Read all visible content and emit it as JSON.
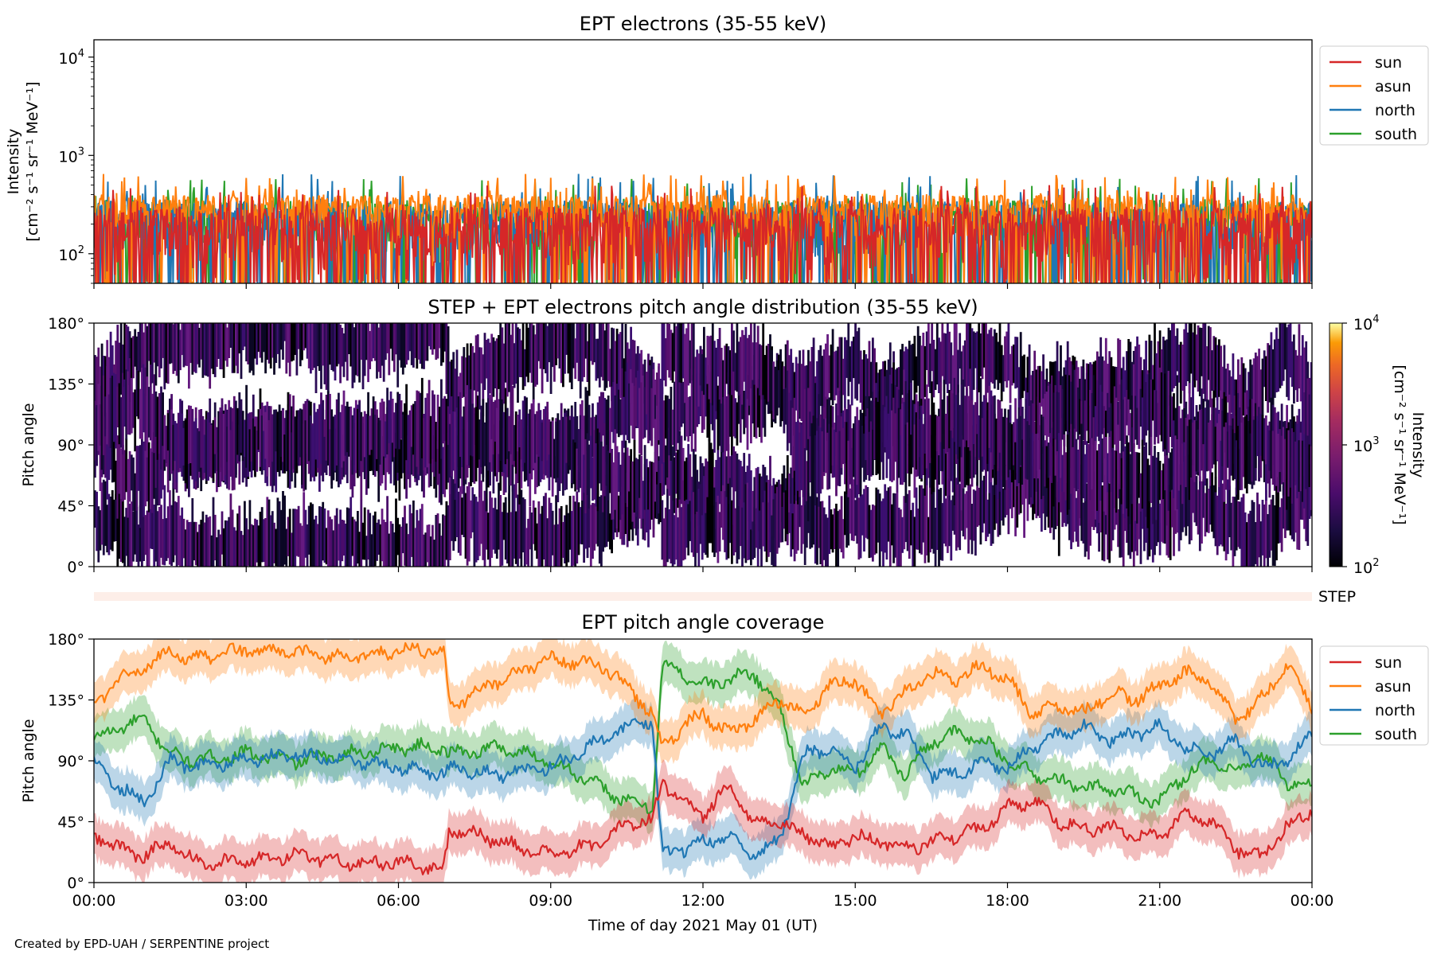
{
  "credit": "Created by EPD-UAH / SERPENTINE project",
  "colors": {
    "sun": "#d62728",
    "asun": "#ff7f0e",
    "north": "#1f77b4",
    "south": "#2ca02c",
    "step_band": "#fdeee8"
  },
  "chart_data": [
    {
      "type": "line",
      "title": "EPT electrons (35-55 keV)",
      "ylabel_line1": "Intensity",
      "ylabel_line2": "[cm⁻² s⁻¹ sr⁻¹ MeV⁻¹]",
      "yscale": "log",
      "ylim": [
        50,
        15000
      ],
      "yticks": [
        {
          "value": 100,
          "base": "10",
          "exp": "2"
        },
        {
          "value": 1000,
          "base": "10",
          "exp": "3"
        },
        {
          "value": 10000,
          "base": "10",
          "exp": "4"
        }
      ],
      "xlim_hours": [
        0,
        24
      ],
      "x_tick_labels_shown": false,
      "legend_position": "outside upper right",
      "series": [
        {
          "name": "sun",
          "color": "#d62728",
          "typical_range": [
            50,
            300
          ],
          "peak": 500
        },
        {
          "name": "asun",
          "color": "#ff7f0e",
          "typical_range": [
            150,
            400
          ],
          "peak": 650
        },
        {
          "name": "north",
          "color": "#1f77b4",
          "typical_range": [
            80,
            350
          ],
          "peak": 650
        },
        {
          "name": "south",
          "color": "#2ca02c",
          "typical_range": [
            80,
            350
          ],
          "peak": 600
        }
      ]
    },
    {
      "type": "heatmap",
      "title": "STEP + EPT electrons pitch angle distribution (35-55 keV)",
      "ylabel": "Pitch angle",
      "ylim": [
        0,
        180
      ],
      "yticks": [
        "0°",
        "45°",
        "90°",
        "135°",
        "180°"
      ],
      "xlim_hours": [
        0,
        24
      ],
      "x_tick_labels_shown": false,
      "colorbar": {
        "scale": "log",
        "range": [
          100,
          10000
        ],
        "ticks": [
          {
            "value": 100,
            "base": "10",
            "exp": "2"
          },
          {
            "value": 1000,
            "base": "10",
            "exp": "3"
          },
          {
            "value": 10000,
            "base": "10",
            "exp": "4"
          }
        ],
        "label_line1": "Intensity",
        "label_line2": "[cm⁻² s⁻¹ sr⁻¹ MeV⁻¹]",
        "colormap": "inferno"
      },
      "step_band_label": "STEP"
    },
    {
      "type": "line",
      "title": "EPT pitch angle coverage",
      "ylabel": "Pitch angle",
      "xlabel": "Time of day 2021 May 01 (UT)",
      "ylim": [
        0,
        180
      ],
      "yticks": [
        "0°",
        "45°",
        "90°",
        "135°",
        "180°"
      ],
      "xticks": [
        "00:00",
        "03:00",
        "06:00",
        "09:00",
        "12:00",
        "15:00",
        "18:00",
        "21:00",
        "00:00"
      ],
      "xlim_hours": [
        0,
        24
      ],
      "legend_position": "outside upper right",
      "band_halfwidth_deg": 15,
      "series": [
        {
          "name": "sun",
          "color": "#d62728",
          "x": [
            0,
            0.5,
            1,
            1.5,
            2,
            3,
            4,
            5,
            6,
            6.9,
            7,
            8,
            9,
            10,
            10.5,
            11,
            11.2,
            11.6,
            12,
            12.5,
            13,
            13.5,
            14,
            14.5,
            15,
            15.5,
            16,
            16.5,
            17,
            17.5,
            18,
            18.5,
            19,
            19.5,
            20,
            20.5,
            21,
            21.5,
            22,
            22.5,
            23,
            23.5,
            24
          ],
          "y": [
            35,
            25,
            20,
            30,
            15,
            15,
            20,
            15,
            15,
            10,
            40,
            30,
            20,
            30,
            45,
            45,
            75,
            60,
            50,
            70,
            45,
            45,
            35,
            25,
            35,
            30,
            25,
            30,
            35,
            40,
            55,
            60,
            45,
            40,
            40,
            35,
            35,
            50,
            45,
            25,
            20,
            40,
            55
          ]
        },
        {
          "name": "asun",
          "color": "#ff7f0e",
          "x": [
            0,
            0.5,
            1,
            1.5,
            2,
            3,
            4,
            5,
            6,
            6.9,
            7,
            8,
            9,
            10,
            10.5,
            11,
            11.2,
            11.6,
            12,
            12.5,
            13,
            13.5,
            14,
            14.5,
            15,
            15.5,
            16,
            16.5,
            17,
            17.5,
            18,
            18.5,
            19,
            19.5,
            20,
            20.5,
            21,
            21.5,
            22,
            22.5,
            23,
            23.5,
            24
          ],
          "y": [
            130,
            150,
            160,
            170,
            165,
            172,
            170,
            165,
            172,
            172,
            130,
            150,
            165,
            160,
            145,
            125,
            100,
            115,
            125,
            110,
            120,
            135,
            125,
            145,
            150,
            125,
            140,
            155,
            150,
            160,
            150,
            125,
            130,
            125,
            140,
            135,
            145,
            155,
            150,
            120,
            135,
            160,
            130
          ]
        },
        {
          "name": "north",
          "color": "#1f77b4",
          "x": [
            0,
            0.5,
            1,
            1.5,
            2,
            3,
            4,
            5,
            6,
            6.9,
            7,
            8,
            9,
            10,
            10.5,
            11,
            11.2,
            11.6,
            12,
            12.5,
            13,
            13.5,
            14,
            14.5,
            15,
            15.5,
            16,
            16.5,
            17,
            17.5,
            18,
            18.5,
            19,
            19.5,
            20,
            20.5,
            21,
            21.5,
            22,
            22.5,
            23,
            23.5,
            24
          ],
          "y": [
            90,
            70,
            60,
            90,
            85,
            90,
            95,
            90,
            85,
            80,
            85,
            80,
            85,
            105,
            115,
            120,
            20,
            25,
            30,
            35,
            20,
            30,
            95,
            100,
            85,
            115,
            110,
            80,
            80,
            90,
            85,
            100,
            110,
            115,
            105,
            110,
            115,
            100,
            95,
            105,
            85,
            90,
            110
          ]
        },
        {
          "name": "south",
          "color": "#2ca02c",
          "x": [
            0,
            0.5,
            1,
            1.5,
            2,
            3,
            4,
            5,
            6,
            6.9,
            7,
            8,
            9,
            10,
            10.5,
            11,
            11.2,
            11.6,
            12,
            12.5,
            13,
            13.5,
            14,
            14.5,
            15,
            15.5,
            16,
            16.5,
            17,
            17.5,
            18,
            18.5,
            19,
            19.5,
            20,
            20.5,
            21,
            21.5,
            22,
            22.5,
            23,
            23.5,
            24
          ],
          "y": [
            105,
            115,
            120,
            95,
            90,
            95,
            90,
            95,
            100,
            100,
            95,
            100,
            90,
            70,
            60,
            55,
            160,
            155,
            145,
            150,
            155,
            130,
            70,
            85,
            80,
            100,
            80,
            105,
            110,
            105,
            90,
            80,
            75,
            70,
            70,
            65,
            60,
            80,
            90,
            80,
            95,
            75,
            70
          ]
        }
      ]
    }
  ]
}
